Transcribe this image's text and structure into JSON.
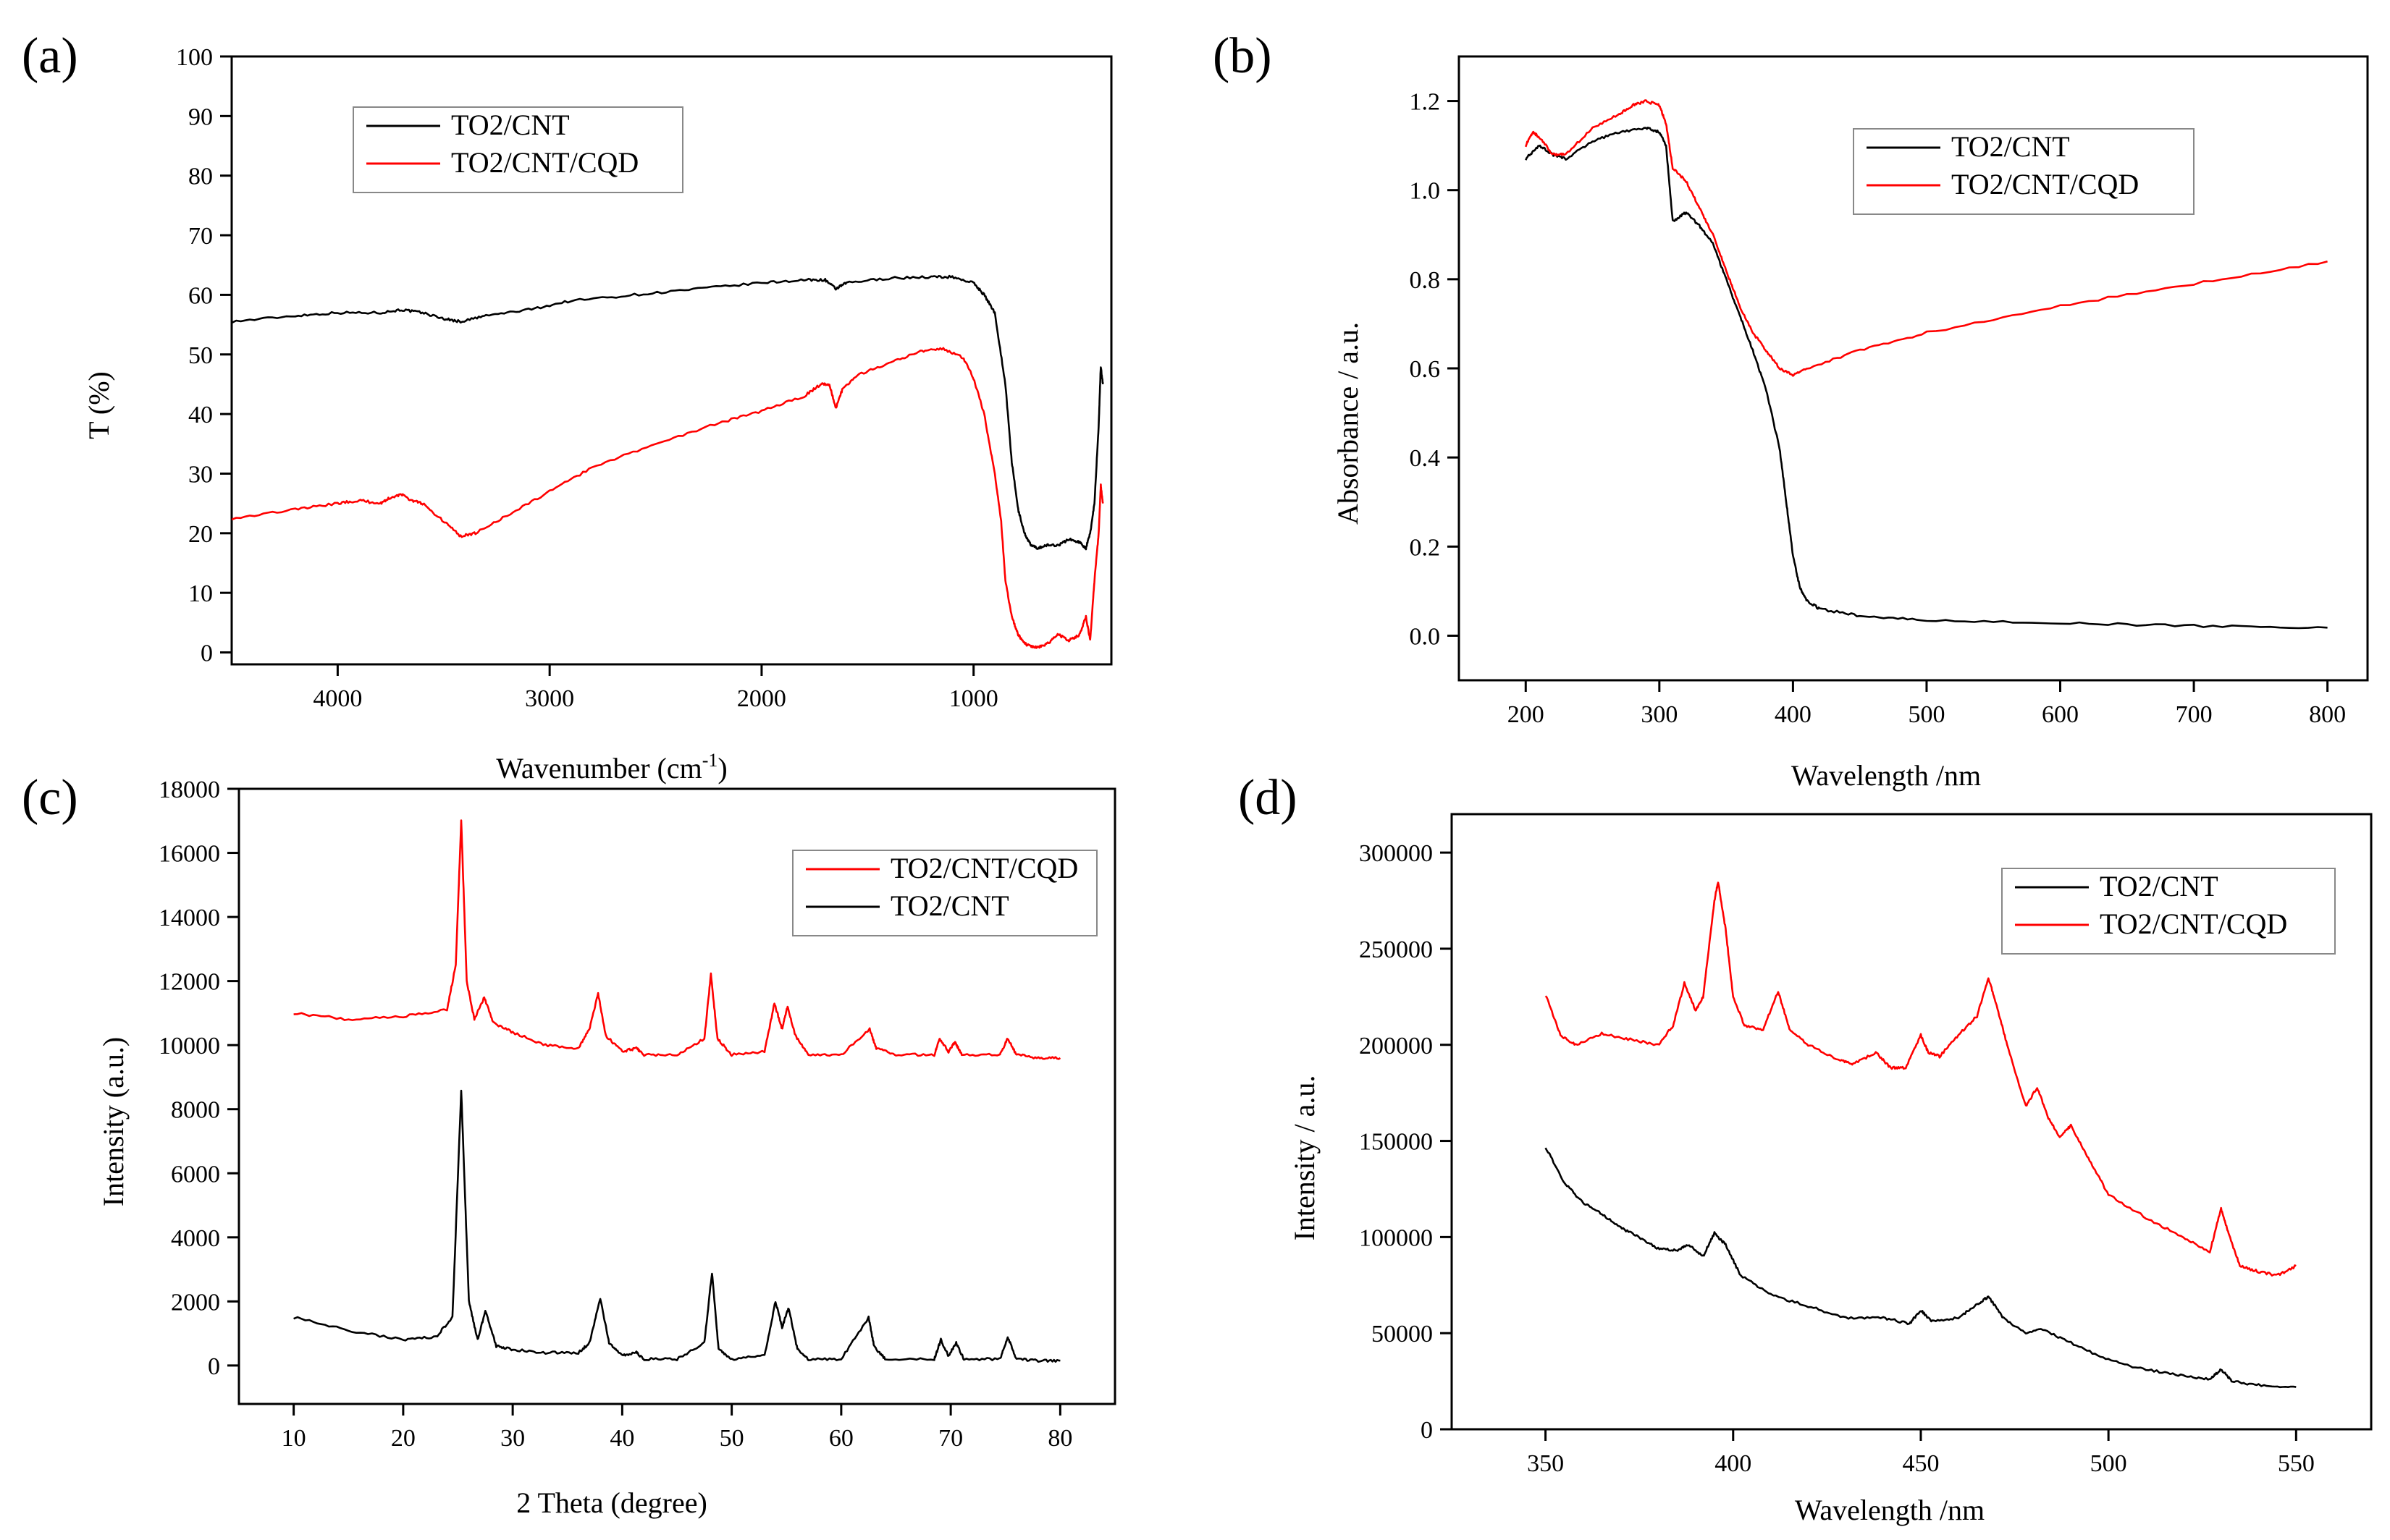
{
  "chart_data": [
    {
      "panel": "(a)",
      "type": "line",
      "title": "",
      "xlabel": "Wavenumber (cm-1)",
      "xlabel_main": "Wavenumber (cm",
      "xlabel_sup": "-1",
      "xlabel_end": ")",
      "ylabel": "T (%)",
      "xlim": [
        4500,
        350
      ],
      "ylim": [
        -2,
        100
      ],
      "xticks": [
        4000,
        3000,
        2000,
        1000
      ],
      "yticks": [
        0,
        10,
        20,
        30,
        40,
        50,
        60,
        70,
        80,
        90,
        100
      ],
      "legend_position": "top-left",
      "series": [
        {
          "name": "TO2/CNT",
          "color": "#000000",
          "x": [
            4500,
            4200,
            4000,
            3800,
            3700,
            3600,
            3500,
            3420,
            3300,
            3100,
            2900,
            2600,
            2300,
            2000,
            1800,
            1700,
            1650,
            1600,
            1400,
            1200,
            1100,
            1000,
            950,
            900,
            850,
            820,
            790,
            760,
            730,
            700,
            650,
            600,
            550,
            500,
            470,
            450,
            430,
            410,
            400,
            390
          ],
          "y": [
            55.5,
            56.5,
            57,
            57,
            57.5,
            57,
            56,
            55.5,
            56.5,
            57.5,
            59,
            60,
            61,
            62,
            62.5,
            62.5,
            61,
            62,
            62.8,
            63,
            63,
            62,
            60,
            57,
            45,
            32,
            24,
            20,
            18,
            17.5,
            18,
            18,
            19,
            18.5,
            17.5,
            20,
            25,
            38,
            48,
            45
          ]
        },
        {
          "name": "TO2/CNT/CQD",
          "color": "#ff0000",
          "x": [
            4500,
            4200,
            4000,
            3900,
            3800,
            3750,
            3700,
            3650,
            3600,
            3500,
            3420,
            3350,
            3200,
            3000,
            2800,
            2500,
            2200,
            2000,
            1800,
            1720,
            1680,
            1650,
            1620,
            1550,
            1400,
            1250,
            1150,
            1050,
            1000,
            950,
            900,
            870,
            850,
            820,
            790,
            760,
            730,
            700,
            650,
            600,
            550,
            500,
            470,
            450,
            430,
            410,
            400,
            390
          ],
          "y": [
            22.5,
            24,
            25,
            25.5,
            25,
            26,
            26.5,
            25.5,
            25,
            22,
            19.5,
            20,
            23,
            27,
            31,
            35,
            38.5,
            40.5,
            43,
            45,
            45,
            41,
            44,
            46.5,
            48.5,
            50.5,
            51,
            49.5,
            46,
            40,
            30,
            22,
            12,
            6,
            3,
            1.5,
            1,
            0.8,
            1.5,
            3,
            2,
            3,
            6,
            2,
            12,
            20,
            28,
            25
          ]
        }
      ]
    },
    {
      "panel": "(b)",
      "type": "line",
      "title": "",
      "xlabel": "Wavelength /nm",
      "ylabel": "Absorbance / a.u.",
      "xlim": [
        150,
        830
      ],
      "ylim": [
        -0.1,
        1.3
      ],
      "xticks": [
        200,
        300,
        400,
        500,
        600,
        700,
        800
      ],
      "xtick_labels": [
        "200",
        "300",
        "400",
        "500",
        "600",
        "700",
        "800"
      ],
      "yticks": [
        0.0,
        0.2,
        0.4,
        0.6,
        0.8,
        1.0,
        1.2
      ],
      "ytick_labels": [
        "0.0",
        "0.2",
        "0.4",
        "0.6",
        "0.8",
        "1.0",
        "1.2"
      ],
      "legend_position": "top-right",
      "series": [
        {
          "name": "TO2/CNT",
          "color": "#000000",
          "x": [
            200,
            210,
            220,
            230,
            250,
            270,
            290,
            300,
            305,
            310,
            320,
            330,
            340,
            350,
            360,
            370,
            380,
            390,
            395,
            400,
            405,
            410,
            420,
            450,
            500,
            600,
            700,
            800
          ],
          "y": [
            1.07,
            1.1,
            1.08,
            1.07,
            1.11,
            1.13,
            1.14,
            1.13,
            1.1,
            0.93,
            0.95,
            0.92,
            0.88,
            0.8,
            0.72,
            0.64,
            0.55,
            0.42,
            0.3,
            0.18,
            0.11,
            0.08,
            0.06,
            0.045,
            0.035,
            0.028,
            0.022,
            0.018
          ]
        },
        {
          "name": "TO2/CNT/CQD",
          "color": "#ff0000",
          "x": [
            200,
            205,
            210,
            220,
            230,
            250,
            270,
            280,
            290,
            300,
            305,
            310,
            320,
            330,
            340,
            350,
            360,
            370,
            380,
            390,
            400,
            410,
            450,
            500,
            600,
            700,
            800
          ],
          "y": [
            1.1,
            1.13,
            1.12,
            1.08,
            1.08,
            1.14,
            1.17,
            1.19,
            1.2,
            1.19,
            1.15,
            1.05,
            1.02,
            0.96,
            0.9,
            0.82,
            0.74,
            0.68,
            0.64,
            0.6,
            0.585,
            0.6,
            0.64,
            0.68,
            0.74,
            0.79,
            0.84
          ]
        }
      ]
    },
    {
      "panel": "(c)",
      "type": "line",
      "title": "",
      "xlabel": "2 Theta (degree)",
      "ylabel": "Intensity (a.u.)",
      "xlim": [
        5,
        85
      ],
      "ylim": [
        -1200,
        18000
      ],
      "xticks": [
        10,
        20,
        30,
        40,
        50,
        60,
        70,
        80
      ],
      "yticks": [
        0,
        2000,
        4000,
        6000,
        8000,
        10000,
        12000,
        14000,
        16000,
        18000
      ],
      "legend_position": "top-right",
      "series": [
        {
          "name": "TO2/CNT/CQD",
          "color": "#ff0000",
          "x": [
            10,
            15,
            20,
            24,
            24.8,
            25.3,
            25.8,
            26.5,
            27.4,
            28.2,
            30,
            33,
            36,
            37,
            37.8,
            38.5,
            40,
            41.3,
            42,
            45,
            47.5,
            48.1,
            48.7,
            50,
            53,
            53.9,
            54.6,
            55.1,
            55.8,
            57,
            60,
            62.6,
            63.2,
            65,
            68.5,
            69,
            69.8,
            70.4,
            71,
            74.5,
            75.2,
            76,
            78,
            80
          ],
          "y": [
            11000,
            10800,
            10900,
            11100,
            12500,
            17000,
            12000,
            10800,
            11500,
            10700,
            10400,
            10000,
            9900,
            10500,
            11600,
            10300,
            9800,
            9900,
            9700,
            9700,
            10200,
            12200,
            10200,
            9700,
            9800,
            11300,
            10500,
            11200,
            10300,
            9700,
            9700,
            10500,
            9900,
            9700,
            9700,
            10200,
            9800,
            10100,
            9700,
            9700,
            10200,
            9700,
            9600,
            9600
          ]
        },
        {
          "name": "TO2/CNT",
          "color": "#000000",
          "x": [
            10,
            15,
            20,
            23,
            24.5,
            25.3,
            26,
            26.8,
            27.5,
            28.5,
            30,
            33,
            36,
            37,
            38,
            38.8,
            40,
            41.3,
            42,
            45,
            47.5,
            48.2,
            48.8,
            50,
            53,
            54,
            54.6,
            55.2,
            56,
            57,
            60,
            62.5,
            63,
            64,
            68.5,
            69.1,
            69.8,
            70.5,
            71.2,
            74.5,
            75.2,
            76,
            78,
            80
          ],
          "y": [
            1500,
            1100,
            800,
            900,
            1500,
            8600,
            2000,
            800,
            1700,
            600,
            500,
            400,
            400,
            700,
            2100,
            700,
            300,
            400,
            200,
            200,
            700,
            2900,
            500,
            200,
            300,
            2000,
            1200,
            1800,
            500,
            200,
            200,
            1500,
            600,
            200,
            200,
            800,
            300,
            700,
            200,
            200,
            900,
            200,
            150,
            150
          ]
        }
      ]
    },
    {
      "panel": "(d)",
      "type": "line",
      "title": "",
      "xlabel": "Wavelength /nm",
      "ylabel": "Intensity / a.u.",
      "xlim": [
        325,
        570
      ],
      "ylim": [
        0,
        320000
      ],
      "xticks": [
        350,
        400,
        450,
        500,
        550
      ],
      "yticks": [
        0,
        50000,
        100000,
        150000,
        200000,
        250000,
        300000
      ],
      "legend_position": "top-right",
      "series": [
        {
          "name": "TO2/CNT",
          "color": "#000000",
          "x": [
            350,
            355,
            360,
            365,
            370,
            375,
            380,
            385,
            388,
            392,
            395,
            398,
            402,
            410,
            420,
            430,
            440,
            447,
            450,
            453,
            460,
            465,
            468,
            472,
            478,
            482,
            490,
            500,
            510,
            520,
            527,
            530,
            533,
            540,
            550
          ],
          "y": [
            147000,
            128000,
            118000,
            112000,
            105000,
            100000,
            94000,
            93000,
            96000,
            90000,
            102000,
            96000,
            80000,
            70000,
            64000,
            58000,
            58000,
            55000,
            62000,
            56000,
            58000,
            65000,
            69000,
            58000,
            50000,
            52000,
            45000,
            36000,
            31000,
            28000,
            26000,
            31000,
            25000,
            23000,
            22000
          ]
        },
        {
          "name": "TO2/CNT/CQD",
          "color": "#ff0000",
          "x": [
            350,
            354,
            358,
            365,
            372,
            380,
            384,
            387,
            390,
            392,
            395,
            396,
            398,
            400,
            403,
            408,
            412,
            415,
            420,
            428,
            432,
            438,
            442,
            446,
            450,
            452,
            455,
            460,
            465,
            468,
            470,
            473,
            478,
            481,
            484,
            487,
            490,
            495,
            500,
            510,
            520,
            527,
            530,
            532,
            535,
            540,
            545,
            550
          ],
          "y": [
            226000,
            205000,
            200000,
            206000,
            203000,
            200000,
            210000,
            232000,
            218000,
            225000,
            275000,
            285000,
            260000,
            225000,
            210000,
            208000,
            228000,
            208000,
            200000,
            192000,
            190000,
            196000,
            188000,
            188000,
            205000,
            196000,
            194000,
            205000,
            215000,
            235000,
            222000,
            200000,
            168000,
            178000,
            162000,
            152000,
            158000,
            140000,
            122000,
            110000,
            100000,
            92000,
            115000,
            102000,
            85000,
            82000,
            80000,
            85000
          ]
        }
      ]
    }
  ]
}
